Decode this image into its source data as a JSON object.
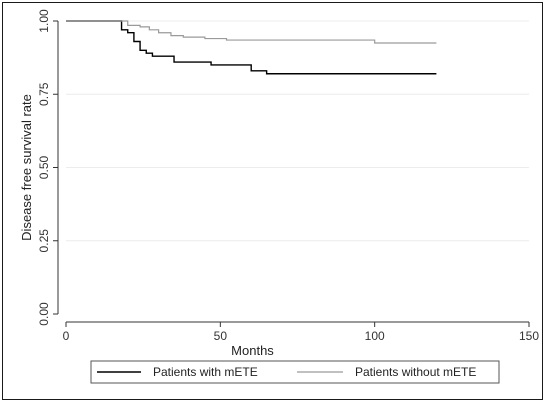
{
  "chart_data": {
    "type": "line",
    "xlabel": "Months",
    "ylabel": "Disease free survival rate",
    "xlim": [
      0,
      150
    ],
    "ylim": [
      0,
      1
    ],
    "x_ticks": [
      0,
      50,
      100,
      150
    ],
    "y_ticks": [
      0.0,
      0.25,
      0.5,
      0.75,
      1.0
    ],
    "x_tick_labels": [
      "0",
      "50",
      "100",
      "150"
    ],
    "y_tick_labels": [
      "0.00",
      "0.25",
      "0.50",
      "0.75",
      "1.00"
    ],
    "grid": "horizontal",
    "legend_position": "bottom",
    "series": [
      {
        "name": "Patients with mETE",
        "color": "#000000",
        "step": true,
        "x": [
          0,
          18,
          20,
          22,
          24,
          26,
          28,
          30,
          35,
          47,
          60,
          65,
          120
        ],
        "y": [
          1.0,
          0.97,
          0.96,
          0.93,
          0.9,
          0.89,
          0.88,
          0.88,
          0.86,
          0.85,
          0.83,
          0.82,
          0.82
        ]
      },
      {
        "name": "Patients without mETE",
        "color": "#9a9a9a",
        "step": true,
        "x": [
          0,
          20,
          24,
          27,
          30,
          34,
          38,
          45,
          52,
          100,
          120
        ],
        "y": [
          1.0,
          0.985,
          0.98,
          0.97,
          0.96,
          0.95,
          0.945,
          0.94,
          0.935,
          0.925,
          0.925
        ]
      }
    ]
  }
}
